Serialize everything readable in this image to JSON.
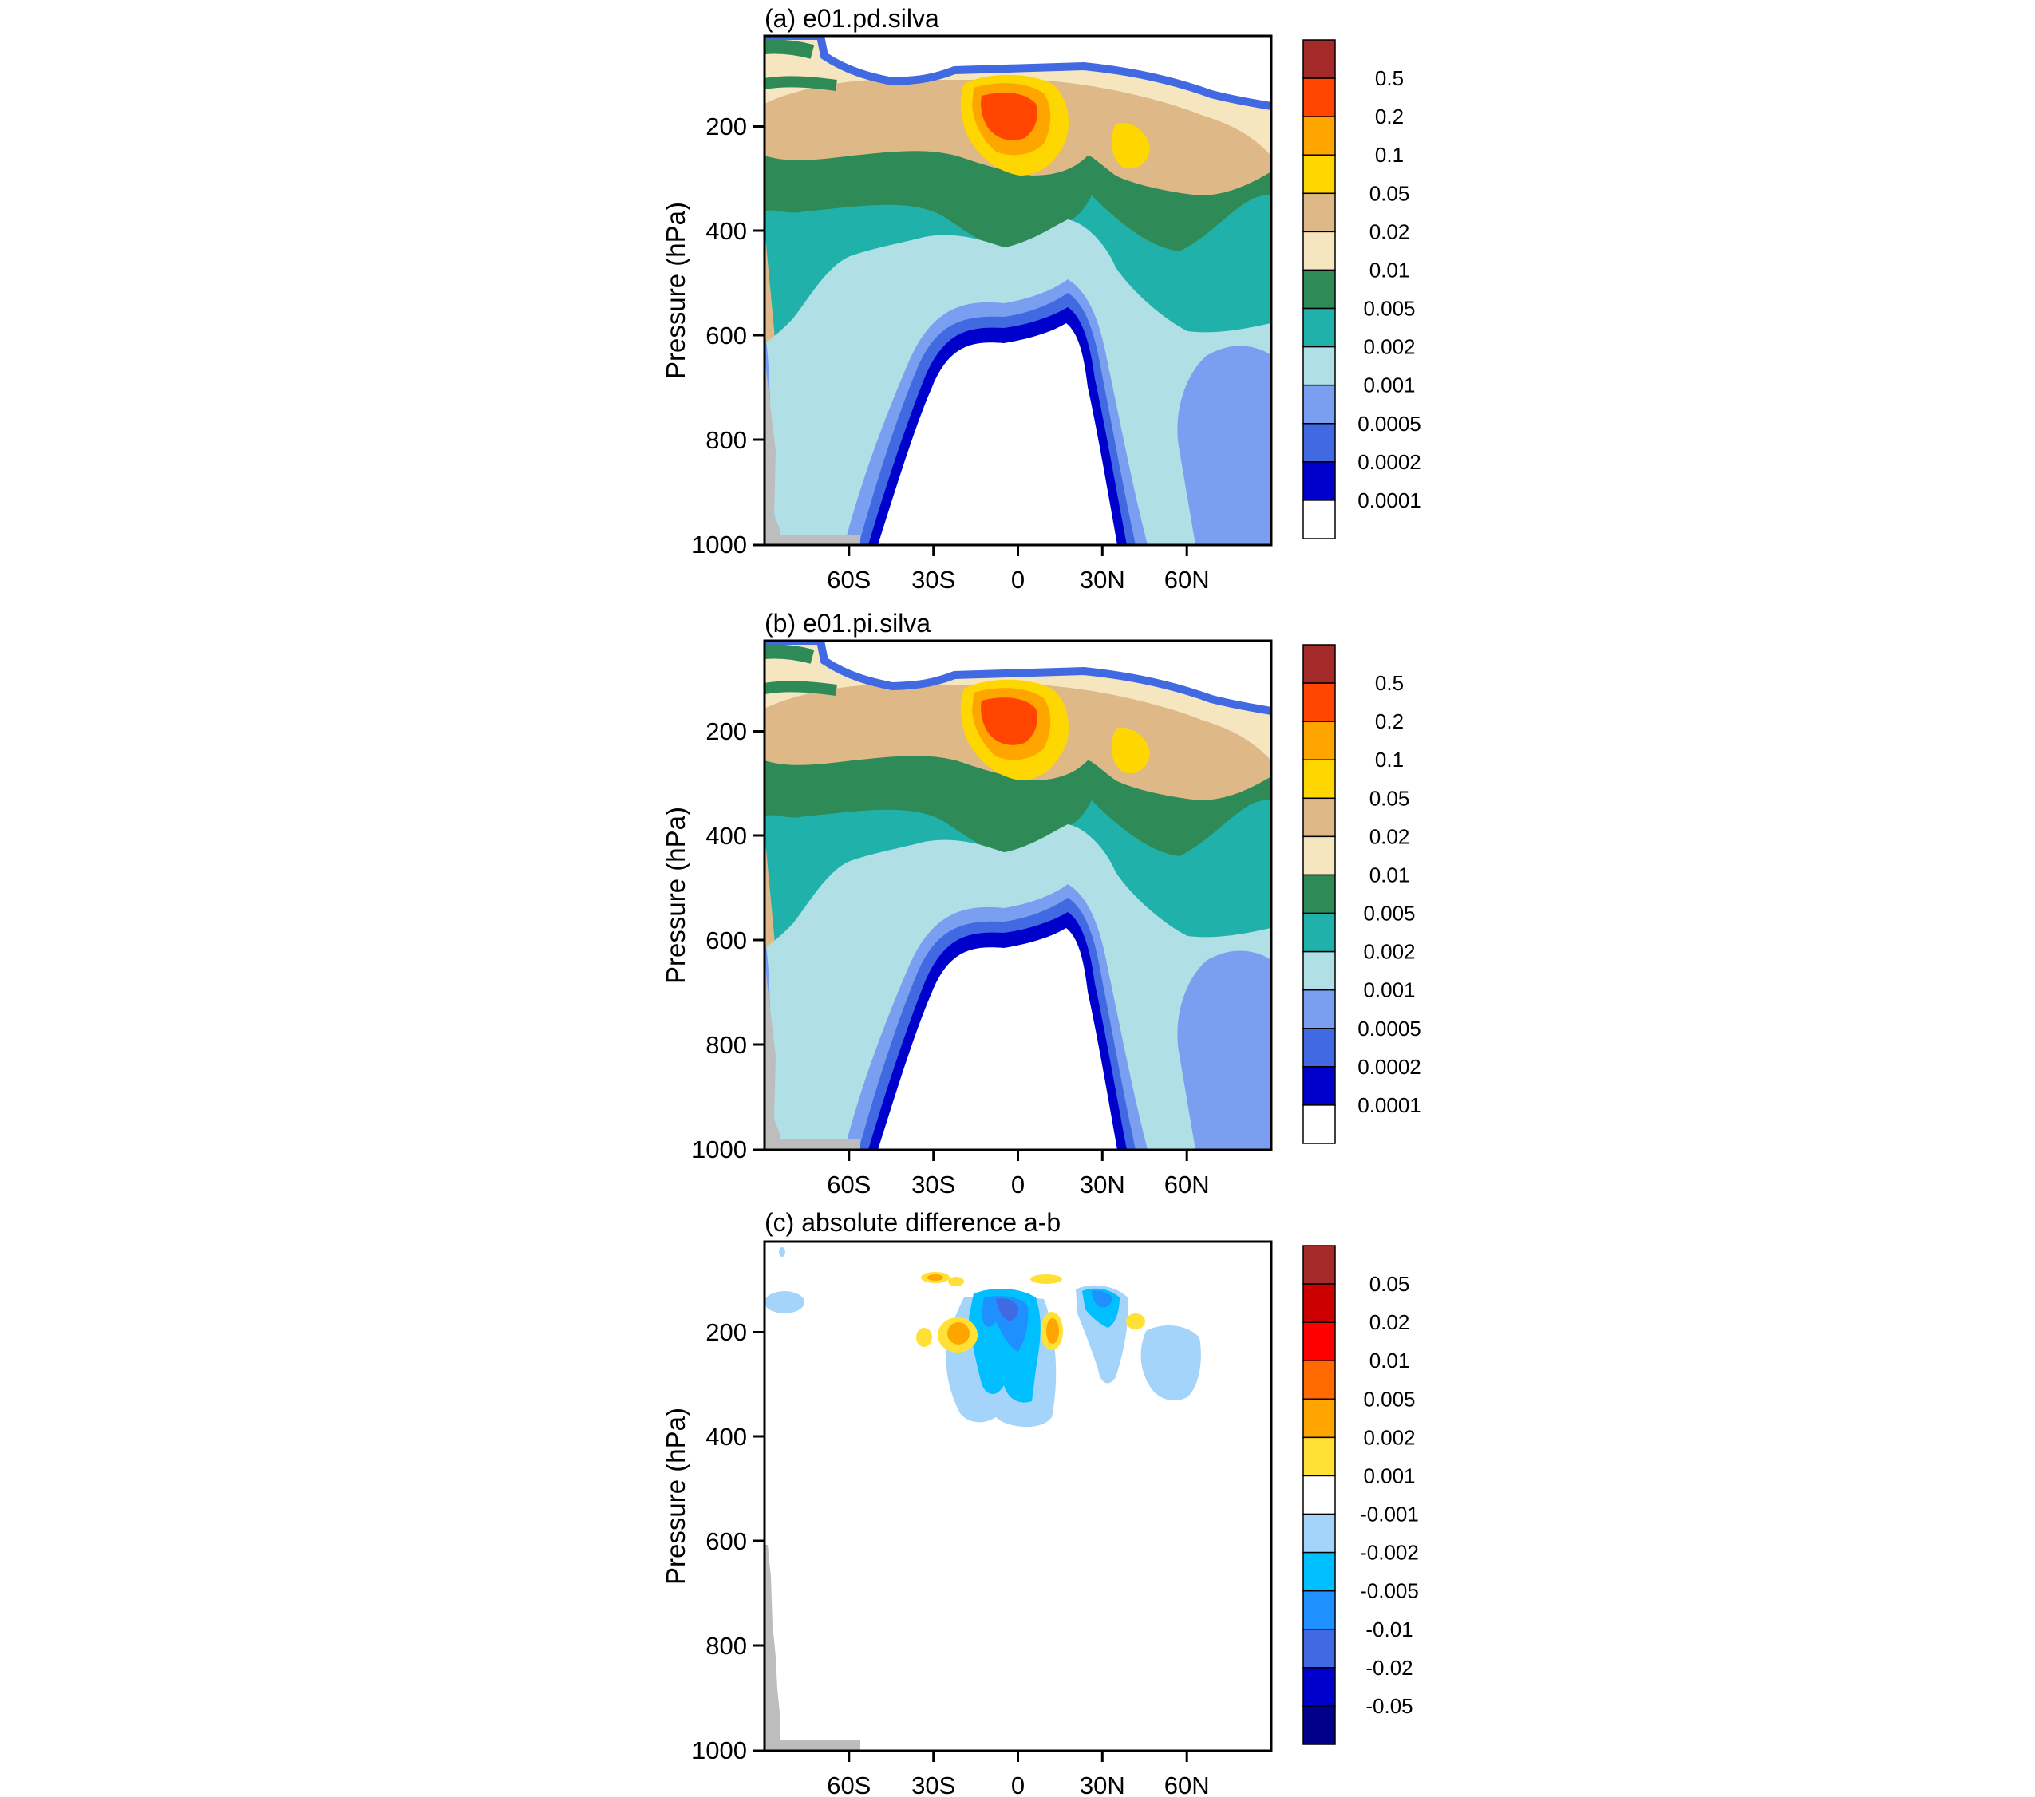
{
  "chart_data": [
    {
      "type": "heatmap",
      "title": "(a) e01.pd.silva",
      "ylabel": "Pressure (hPa)",
      "xlabel": "",
      "x_ticks": [
        "60S",
        "30S",
        "0",
        "30N",
        "60N"
      ],
      "y_ticks": [
        "200",
        "400",
        "600",
        "800",
        "1000"
      ],
      "x_range": [
        "90S",
        "90N"
      ],
      "ylim": [
        1000,
        50
      ],
      "y_reversed": true,
      "colorbar": {
        "labels": [
          "0.5",
          "0.2",
          "0.1",
          "0.05",
          "0.02",
          "0.01",
          "0.005",
          "0.002",
          "0.001",
          "0.0005",
          "0.0002",
          "0.0001"
        ],
        "colors": [
          "#a52a2a",
          "#ff4500",
          "#ffa500",
          "#ffd700",
          "#deb887",
          "#f5e6c0",
          "#2e8b57",
          "#20b2aa",
          "#b0e0e6",
          "#7b9ff0",
          "#4169e1",
          "#0000cd",
          "#ffffff"
        ]
      }
    },
    {
      "type": "heatmap",
      "title": "(b) e01.pi.silva",
      "ylabel": "Pressure (hPa)",
      "xlabel": "",
      "x_ticks": [
        "60S",
        "30S",
        "0",
        "30N",
        "60N"
      ],
      "y_ticks": [
        "200",
        "400",
        "600",
        "800",
        "1000"
      ],
      "x_range": [
        "90S",
        "90N"
      ],
      "ylim": [
        1000,
        50
      ],
      "y_reversed": true,
      "colorbar": {
        "labels": [
          "0.5",
          "0.2",
          "0.1",
          "0.05",
          "0.02",
          "0.01",
          "0.005",
          "0.002",
          "0.001",
          "0.0005",
          "0.0002",
          "0.0001"
        ],
        "colors": [
          "#a52a2a",
          "#ff4500",
          "#ffa500",
          "#ffd700",
          "#deb887",
          "#f5e6c0",
          "#2e8b57",
          "#20b2aa",
          "#b0e0e6",
          "#7b9ff0",
          "#4169e1",
          "#0000cd",
          "#ffffff"
        ]
      }
    },
    {
      "type": "heatmap",
      "title": "(c) absolute difference a-b",
      "ylabel": "Pressure (hPa)",
      "xlabel": "",
      "x_ticks": [
        "60S",
        "30S",
        "0",
        "30N",
        "60N"
      ],
      "y_ticks": [
        "200",
        "400",
        "600",
        "800",
        "1000"
      ],
      "x_range": [
        "90S",
        "90N"
      ],
      "ylim": [
        1000,
        50
      ],
      "y_reversed": true,
      "colorbar": {
        "labels": [
          "0.05",
          "0.02",
          "0.01",
          "0.005",
          "0.002",
          "0.001",
          "-0.001",
          "-0.002",
          "-0.005",
          "-0.01",
          "-0.02",
          "-0.05"
        ],
        "colors": [
          "#a52a2a",
          "#cd0000",
          "#ff0000",
          "#ff6a00",
          "#ffa500",
          "#ffe135",
          "#ffffff",
          "#a5d4fa",
          "#00bfff",
          "#1e90ff",
          "#4169e1",
          "#0000cd",
          "#00008b"
        ]
      }
    }
  ]
}
